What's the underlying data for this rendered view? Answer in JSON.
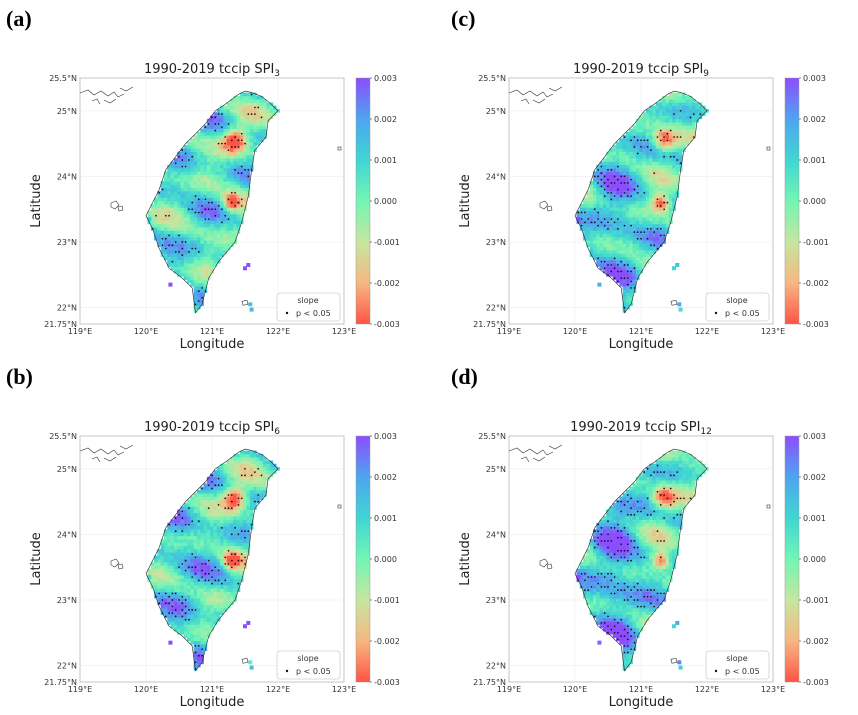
{
  "figure": {
    "description_source": "four-panel map figure"
  },
  "panels": [
    {
      "id": "a",
      "label": "(a)",
      "title_prefix": "1990-2019 tccip SPI",
      "subscript": "3"
    },
    {
      "id": "c",
      "label": "(c)",
      "title_prefix": "1990-2019 tccip SPI",
      "subscript": "9"
    },
    {
      "id": "b",
      "label": "(b)",
      "title_prefix": "1990-2019 tccip SPI",
      "subscript": "6"
    },
    {
      "id": "d",
      "label": "(d)",
      "title_prefix": "1990-2019 tccip SPI",
      "subscript": "12"
    }
  ],
  "axes": {
    "xlabel": "Longitude",
    "ylabel": "Latitude",
    "xticks": [
      "119°E",
      "120°E",
      "121°E",
      "122°E",
      "123°E"
    ],
    "yticks": [
      "25.5°N",
      "25°N",
      "24°N",
      "23°N",
      "22°N",
      "21.75°N"
    ]
  },
  "colorbar": {
    "ticks": [
      "0.003",
      "0.002",
      "0.001",
      "0.000",
      "-0.001",
      "-0.002",
      "-0.003"
    ],
    "colors": [
      "#8c4dff",
      "#4ea5ef",
      "#3fd6d2",
      "#73f5b4",
      "#c6e6a0",
      "#f6b781",
      "#fe5445"
    ]
  },
  "legend": {
    "title": "slope",
    "entry": "p < 0.05"
  },
  "chart_data": [
    {
      "type": "heatmap",
      "title": "1990-2019 tccip SPI3",
      "xlabel": "Longitude",
      "ylabel": "Latitude",
      "xlim": [
        119,
        123
      ],
      "ylim": [
        21.75,
        25.5
      ],
      "colorbar_range": [
        -0.003,
        0.003
      ],
      "legend": "slope: p < 0.05"
    },
    {
      "type": "heatmap",
      "title": "1990-2019 tccip SPI9",
      "xlabel": "Longitude",
      "ylabel": "Latitude",
      "xlim": [
        119,
        123
      ],
      "ylim": [
        21.75,
        25.5
      ],
      "colorbar_range": [
        -0.003,
        0.003
      ],
      "legend": "slope: p < 0.05"
    },
    {
      "type": "heatmap",
      "title": "1990-2019 tccip SPI6",
      "xlabel": "Longitude",
      "ylabel": "Latitude",
      "xlim": [
        119,
        123
      ],
      "ylim": [
        21.75,
        25.5
      ],
      "colorbar_range": [
        -0.003,
        0.003
      ],
      "legend": "slope: p < 0.05"
    },
    {
      "type": "heatmap",
      "title": "1990-2019 tccip SPI12",
      "xlabel": "Longitude",
      "ylabel": "Latitude",
      "xlim": [
        119,
        123
      ],
      "ylim": [
        21.75,
        25.5
      ],
      "colorbar_range": [
        -0.003,
        0.003
      ],
      "legend": "slope: p < 0.05"
    }
  ]
}
